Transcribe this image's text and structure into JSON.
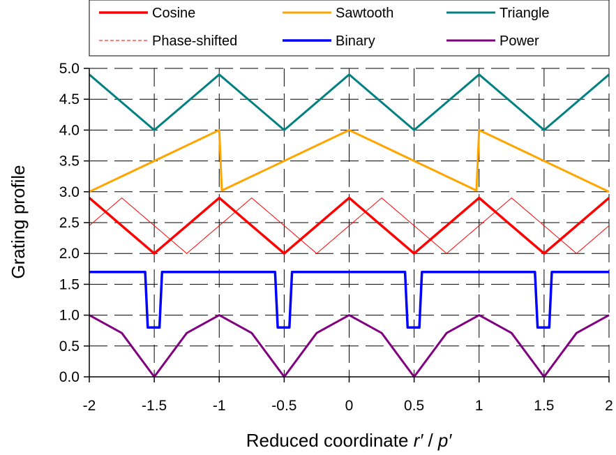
{
  "chart_data": {
    "type": "line",
    "xlabel_text": "Reduced coordinate ",
    "xlabel_var1": "r′",
    "xlabel_sep": " / ",
    "xlabel_var2": "p′",
    "ylabel": "Grating profile",
    "xlim": [
      -2,
      2
    ],
    "ylim": [
      0,
      5
    ],
    "x_ticks": [
      -2,
      -1.5,
      -1,
      -0.5,
      0,
      0.5,
      1,
      1.5,
      2
    ],
    "x_tick_labels": [
      "-2",
      "-1.5",
      "-1",
      "-0.5",
      "0",
      "0.5",
      "1",
      "1.5",
      "2"
    ],
    "y_ticks": [
      0,
      0.5,
      1,
      1.5,
      2,
      2.5,
      3,
      3.5,
      4,
      4.5,
      5
    ],
    "y_tick_labels": [
      "0.0",
      "0.5",
      "1.0",
      "1.5",
      "2.0",
      "2.5",
      "3.0",
      "3.5",
      "4.0",
      "4.5",
      "5.0"
    ],
    "grid": "dashed",
    "legend_position": "top",
    "series": [
      {
        "name": "Cosine",
        "color": "#ff0000",
        "style": "solid",
        "width": 3.5,
        "x": [
          -2,
          -1.75,
          -1.5,
          -1.25,
          -1,
          -0.75,
          -0.5,
          -0.25,
          0,
          0.25,
          0.5,
          0.75,
          1,
          1.25,
          1.5,
          1.75,
          2
        ],
        "y": [
          2.9,
          2.45,
          2.0,
          2.45,
          2.9,
          2.45,
          2.0,
          2.45,
          2.9,
          2.45,
          2.0,
          2.45,
          2.9,
          2.45,
          2.0,
          2.45,
          2.9
        ]
      },
      {
        "name": "Sawtooth",
        "color": "#ffa500",
        "style": "solid",
        "width": 3,
        "x": [
          -2,
          -1,
          -0.98,
          0,
          0.98,
          1,
          2
        ],
        "y": [
          3.0,
          4.0,
          3.02,
          4.0,
          3.02,
          4.0,
          3.0
        ]
      },
      {
        "name": "Triangle",
        "color": "#008080",
        "style": "solid",
        "width": 3,
        "x": [
          -2,
          -1.5,
          -1,
          -0.5,
          0,
          0.5,
          1,
          1.5,
          2
        ],
        "y": [
          4.9,
          4.0,
          4.9,
          4.0,
          4.9,
          4.0,
          4.9,
          4.0,
          4.9
        ]
      },
      {
        "name": "Phase-shifted",
        "color": "#ff0000",
        "style": "thin",
        "width": 1,
        "x": [
          -2,
          -1.75,
          -1.5,
          -1.25,
          -1,
          -0.75,
          -0.5,
          -0.25,
          0,
          0.25,
          0.5,
          0.75,
          1,
          1.25,
          1.5,
          1.75,
          2
        ],
        "y": [
          2.45,
          2.9,
          2.45,
          2.0,
          2.45,
          2.9,
          2.45,
          2.0,
          2.45,
          2.9,
          2.45,
          2.0,
          2.45,
          2.9,
          2.45,
          2.0,
          2.45
        ]
      },
      {
        "name": "Binary",
        "color": "#0000ff",
        "style": "solid",
        "width": 3.5,
        "x": [
          -2,
          -1.57,
          -1.55,
          -1.46,
          -1.44,
          -0.57,
          -0.55,
          -0.46,
          -0.44,
          0.43,
          0.45,
          0.54,
          0.56,
          1.43,
          1.45,
          1.54,
          1.56,
          2
        ],
        "y": [
          1.7,
          1.7,
          0.8,
          0.8,
          1.7,
          1.7,
          0.8,
          0.8,
          1.7,
          1.7,
          0.8,
          0.8,
          1.7,
          1.7,
          0.8,
          0.8,
          1.7,
          1.7
        ]
      },
      {
        "name": "Power",
        "color": "#800080",
        "style": "solid",
        "width": 3,
        "x": [
          -2,
          -1.75,
          -1.5,
          -1.25,
          -1,
          -0.75,
          -0.5,
          -0.25,
          0,
          0.25,
          0.5,
          0.75,
          1,
          1.25,
          1.5,
          1.75,
          2
        ],
        "y": [
          1.0,
          0.71,
          0.0,
          0.71,
          1.0,
          0.71,
          0.0,
          0.71,
          1.0,
          0.71,
          0.0,
          0.71,
          1.0,
          0.71,
          0.0,
          0.71,
          1.0
        ]
      }
    ]
  }
}
